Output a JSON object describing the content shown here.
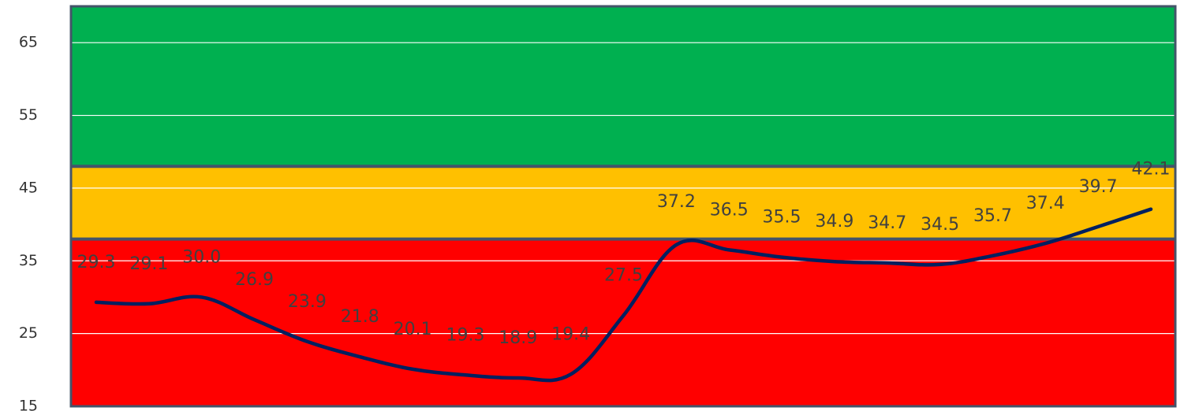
{
  "chart_data": {
    "type": "line",
    "title": "",
    "xlabel": "",
    "ylabel": "",
    "ylim": [
      15,
      70
    ],
    "yticks": [
      15,
      25,
      35,
      45,
      55,
      65
    ],
    "ytick_labels": [
      "15",
      "25",
      "35",
      "45",
      "55",
      "65"
    ],
    "x": [
      1,
      2,
      3,
      4,
      5,
      6,
      7,
      8,
      9,
      10,
      11,
      12,
      13,
      14,
      15,
      16,
      17,
      18,
      19,
      20,
      21
    ],
    "series": [
      {
        "values": [
          29.3,
          29.1,
          30.0,
          26.9,
          23.9,
          21.8,
          20.1,
          19.3,
          18.9,
          19.4,
          27.5,
          37.2,
          36.5,
          35.5,
          34.9,
          34.7,
          34.5,
          35.7,
          37.4,
          39.7,
          42.1
        ],
        "labels": [
          "29.3",
          "29.1",
          "30.0",
          "26.9",
          "23.9",
          "21.8",
          "20.1",
          "19.3",
          "18.9",
          "19.4",
          "27.5",
          "37.2",
          "36.5",
          "35.5",
          "34.9",
          "34.7",
          "34.5",
          "35.7",
          "37.4",
          "39.7",
          "42.1"
        ]
      }
    ],
    "bands": [
      {
        "from": 15,
        "to": 38,
        "color": "#ff0000"
      },
      {
        "from": 38,
        "to": 48,
        "color": "#ffc000"
      },
      {
        "from": 48,
        "to": 70,
        "color": "#00b050"
      }
    ],
    "band_border_color": "#44546a",
    "line_color": "#002060",
    "gridline_color": "#ffffff",
    "grid": true,
    "legend": "none"
  }
}
